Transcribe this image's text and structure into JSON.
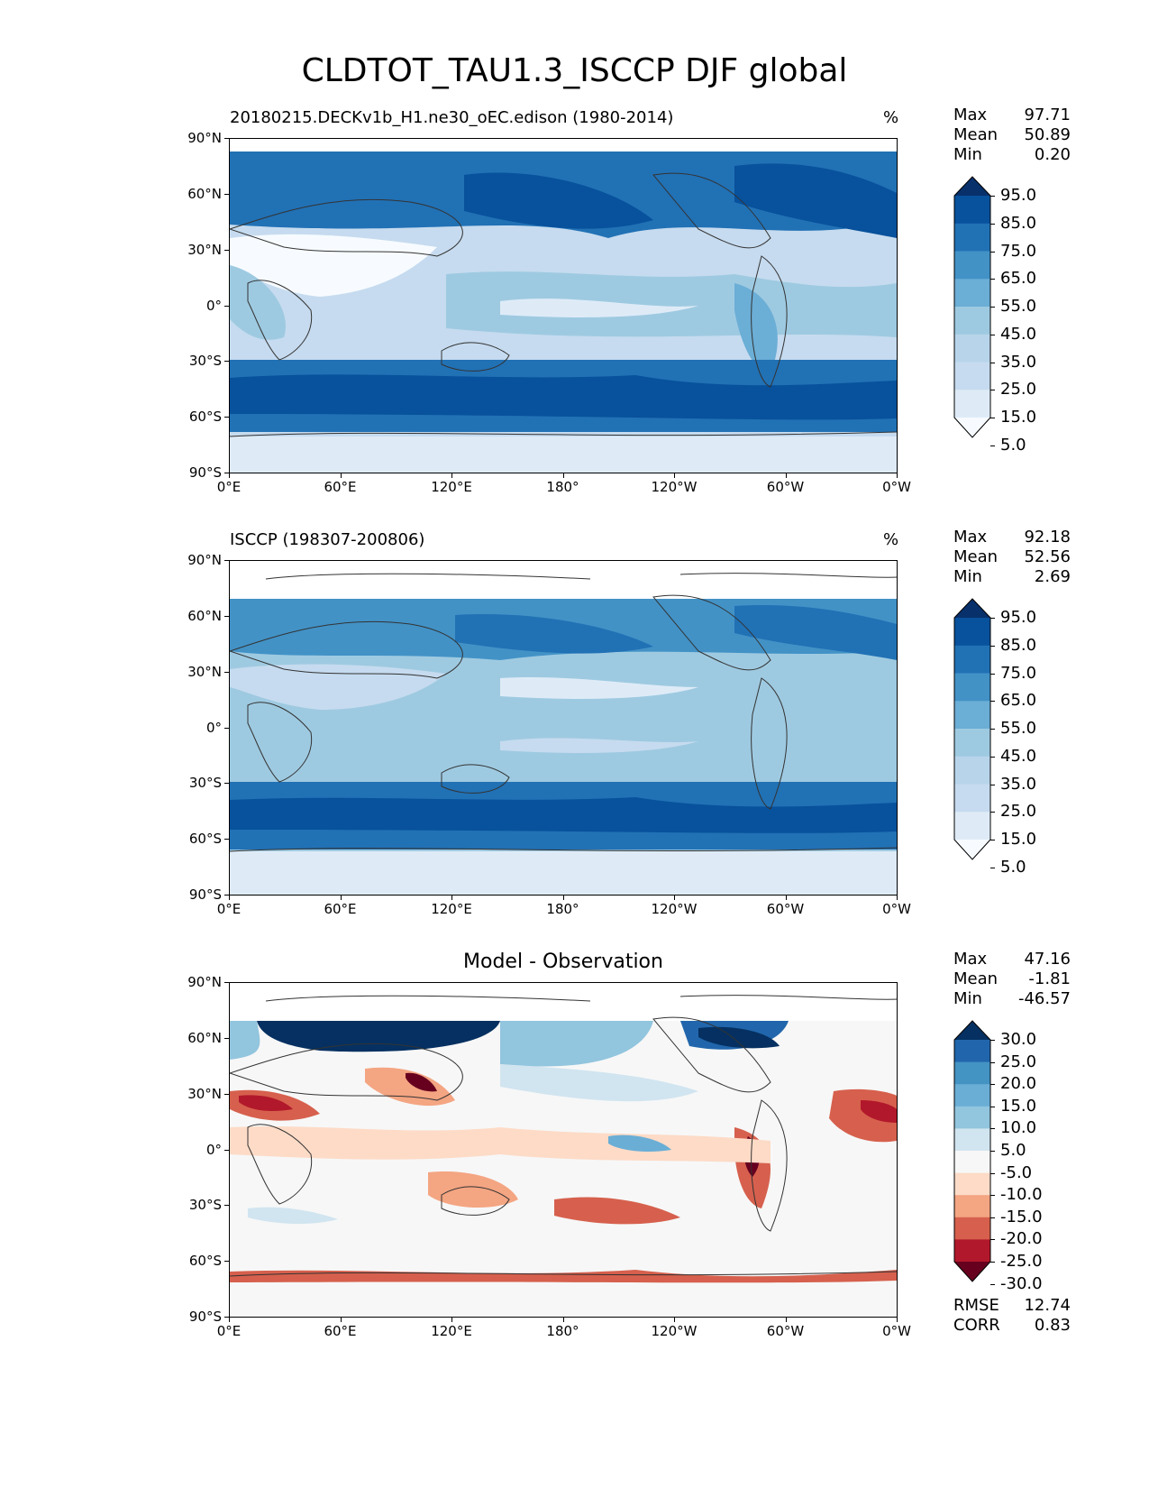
{
  "title": "CLDTOT_TAU1.3_ISCCP DJF global",
  "x_ticks": [
    "0°E",
    "60°E",
    "120°E",
    "180°",
    "120°W",
    "60°W",
    "0°W"
  ],
  "y_ticks": [
    "90°N",
    "60°N",
    "30°N",
    "0°",
    "30°S",
    "60°S",
    "90°S"
  ],
  "panels": [
    {
      "title_left": "20180215.DECKv1b_H1.ne30_oEC.edison (1980-2014)",
      "title_right": "%",
      "stats": {
        "max_label": "Max",
        "max": "97.71",
        "mean_label": "Mean",
        "mean": "50.89",
        "min_label": "Min",
        "min": "0.20"
      },
      "colorbar": {
        "labels": [
          "95.0",
          "85.0",
          "75.0",
          "65.0",
          "55.0",
          "45.0",
          "35.0",
          "25.0",
          "15.0",
          "5.0"
        ],
        "colors": [
          "#08306b",
          "#08519c",
          "#2171b5",
          "#4292c6",
          "#6baed6",
          "#9ecae1",
          "#b7d4ea",
          "#c6dbef",
          "#deebf7",
          "#f7fbff"
        ]
      }
    },
    {
      "title_left": "ISCCP (198307-200806)",
      "title_right": "%",
      "stats": {
        "max_label": "Max",
        "max": "92.18",
        "mean_label": "Mean",
        "mean": "52.56",
        "min_label": "Min",
        "min": "2.69"
      },
      "colorbar": {
        "labels": [
          "95.0",
          "85.0",
          "75.0",
          "65.0",
          "55.0",
          "45.0",
          "35.0",
          "25.0",
          "15.0",
          "5.0"
        ],
        "colors": [
          "#08306b",
          "#08519c",
          "#2171b5",
          "#4292c6",
          "#6baed6",
          "#9ecae1",
          "#b7d4ea",
          "#c6dbef",
          "#deebf7",
          "#f7fbff"
        ]
      }
    },
    {
      "title_center": "Model - Observation",
      "stats": {
        "max_label": "Max",
        "max": "47.16",
        "mean_label": "Mean",
        "mean": "-1.81",
        "min_label": "Min",
        "min": "-46.57"
      },
      "colorbar": {
        "labels": [
          "30.0",
          "25.0",
          "20.0",
          "15.0",
          "10.0",
          "5.0",
          "-5.0",
          "-10.0",
          "-15.0",
          "-20.0",
          "-25.0",
          "-30.0"
        ],
        "colors": [
          "#053061",
          "#2166ac",
          "#4393c3",
          "#6aaed6",
          "#92c5de",
          "#d1e5f0",
          "#f7f7f7",
          "#fddbc7",
          "#f4a582",
          "#d6604d",
          "#b2182b",
          "#67001f"
        ]
      },
      "metrics": {
        "rmse_label": "RMSE",
        "rmse": "12.74",
        "corr_label": "CORR",
        "corr": "0.83"
      }
    }
  ]
}
